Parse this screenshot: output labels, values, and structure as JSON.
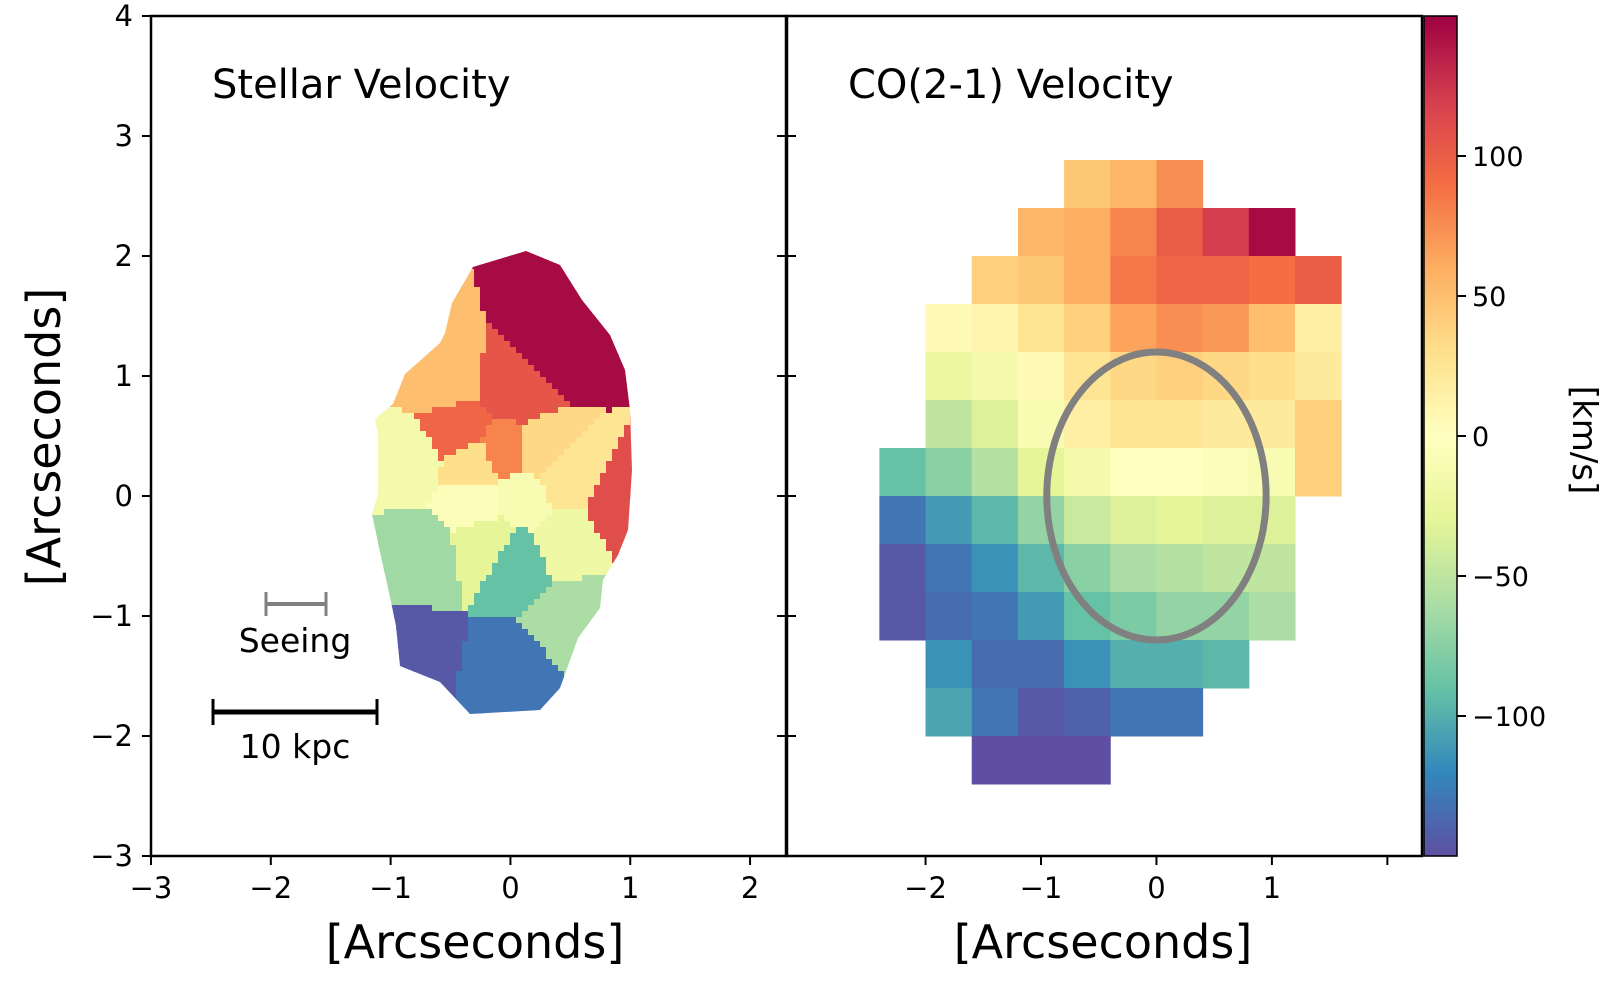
{
  "chart_data": [
    {
      "type": "heatmap",
      "title": "Stellar Velocity",
      "xlabel": "[Arcseconds]",
      "ylabel": "[Arcseconds]",
      "xlim": [
        -3,
        2.3
      ],
      "ylim": [
        -3,
        4
      ],
      "x_ticks": [
        -3,
        -2,
        -1,
        0,
        1,
        2
      ],
      "y_ticks": [
        -3,
        -2,
        -1,
        0,
        1,
        2,
        3,
        4
      ],
      "x_tick_labels": [
        "−3",
        "−2",
        "−1",
        "0",
        "1",
        "2"
      ],
      "y_tick_labels": [
        "−3",
        "−2",
        "−1",
        "0",
        "1",
        "2",
        "3",
        "4"
      ],
      "annotations": {
        "seeing": "Seeing",
        "scale_bar": "10 kpc"
      },
      "bins": [
        {
          "x": 0.35,
          "y": 1.2,
          "v": 145
        },
        {
          "x": 0.95,
          "y": -0.1,
          "v": 110
        },
        {
          "x": 0.05,
          "y": 0.9,
          "v": 105
        },
        {
          "x": -0.45,
          "y": 0.55,
          "v": 95
        },
        {
          "x": -0.55,
          "y": 0.95,
          "v": 50
        },
        {
          "x": -0.05,
          "y": 0.35,
          "v": 80
        },
        {
          "x": -0.3,
          "y": 0.25,
          "v": 30
        },
        {
          "x": 0.25,
          "y": 0.35,
          "v": 35
        },
        {
          "x": 0.45,
          "y": 0.15,
          "v": 25
        },
        {
          "x": -0.85,
          "y": 0.3,
          "v": -15
        },
        {
          "x": -0.3,
          "y": -0.05,
          "v": -5
        },
        {
          "x": 0.1,
          "y": 0.0,
          "v": -10
        },
        {
          "x": 0.45,
          "y": -0.4,
          "v": -20
        },
        {
          "x": -0.2,
          "y": -0.4,
          "v": -30
        },
        {
          "x": 0.05,
          "y": -0.55,
          "v": -90
        },
        {
          "x": -0.75,
          "y": -0.5,
          "v": -65
        },
        {
          "x": 0.55,
          "y": -1.0,
          "v": -60
        },
        {
          "x": -0.8,
          "y": -1.35,
          "v": -145
        },
        {
          "x": -0.05,
          "y": -1.5,
          "v": -130
        }
      ]
    },
    {
      "type": "heatmap",
      "title": "CO(2-1) Velocity",
      "xlabel": "[Arcseconds]",
      "xlim": [
        -3.2,
        2.3
      ],
      "ylim": [
        -3,
        4
      ],
      "x_ticks": [
        -2,
        -1,
        0,
        1,
        2
      ],
      "x_tick_labels": [
        "−2",
        "−1",
        "0",
        "1",
        ""
      ],
      "pixel_size": 0.4,
      "x_edges": [
        -2.4,
        -2.0,
        -1.6,
        -1.2,
        -0.8,
        -0.4,
        0.0,
        0.4,
        0.8,
        1.2,
        1.6
      ],
      "y_edges": [
        2.8,
        2.4,
        2.0,
        1.6,
        1.2,
        0.8,
        0.4,
        0.0,
        -0.4,
        -0.8,
        -1.2,
        -1.6,
        -2.0,
        -2.4
      ],
      "grid": [
        [
          null,
          null,
          null,
          null,
          45,
          55,
          75,
          null,
          null,
          null
        ],
        [
          null,
          null,
          null,
          55,
          60,
          80,
          100,
          120,
          145,
          null
        ],
        [
          null,
          null,
          40,
          45,
          60,
          85,
          95,
          95,
          90,
          100
        ],
        [
          null,
          5,
          10,
          25,
          40,
          65,
          75,
          70,
          50,
          15
        ],
        [
          null,
          -25,
          -15,
          5,
          25,
          35,
          40,
          35,
          30,
          20
        ],
        [
          null,
          -50,
          -35,
          -10,
          15,
          25,
          25,
          20,
          20,
          40
        ],
        [
          -90,
          -75,
          -55,
          -30,
          -15,
          0,
          0,
          -5,
          -10,
          40
        ],
        [
          -130,
          -110,
          -95,
          -70,
          -45,
          -35,
          -30,
          -35,
          -35,
          null
        ],
        [
          -145,
          -130,
          -115,
          -95,
          -75,
          -60,
          -55,
          -50,
          -50,
          null
        ],
        [
          -145,
          -135,
          -130,
          -110,
          -90,
          -80,
          -70,
          -70,
          -60,
          null
        ],
        [
          null,
          -115,
          -135,
          -135,
          -115,
          -100,
          -100,
          -95,
          null,
          null
        ],
        [
          null,
          -105,
          -130,
          -145,
          -140,
          -130,
          -130,
          null,
          null,
          null
        ],
        [
          null,
          null,
          -150,
          -150,
          -150,
          null,
          null,
          null,
          null,
          null
        ]
      ],
      "ellipse": {
        "cx": 0.0,
        "cy": 0.0,
        "rx": 0.95,
        "ry": 1.2
      }
    }
  ],
  "colorbar": {
    "label": "[km/s]",
    "range": [
      -150,
      150
    ],
    "ticks": [
      100,
      50,
      0,
      -50,
      -100
    ],
    "tick_labels": [
      "100",
      "50",
      "0",
      "−50",
      "−100"
    ],
    "colormap": "Spectral_r"
  }
}
